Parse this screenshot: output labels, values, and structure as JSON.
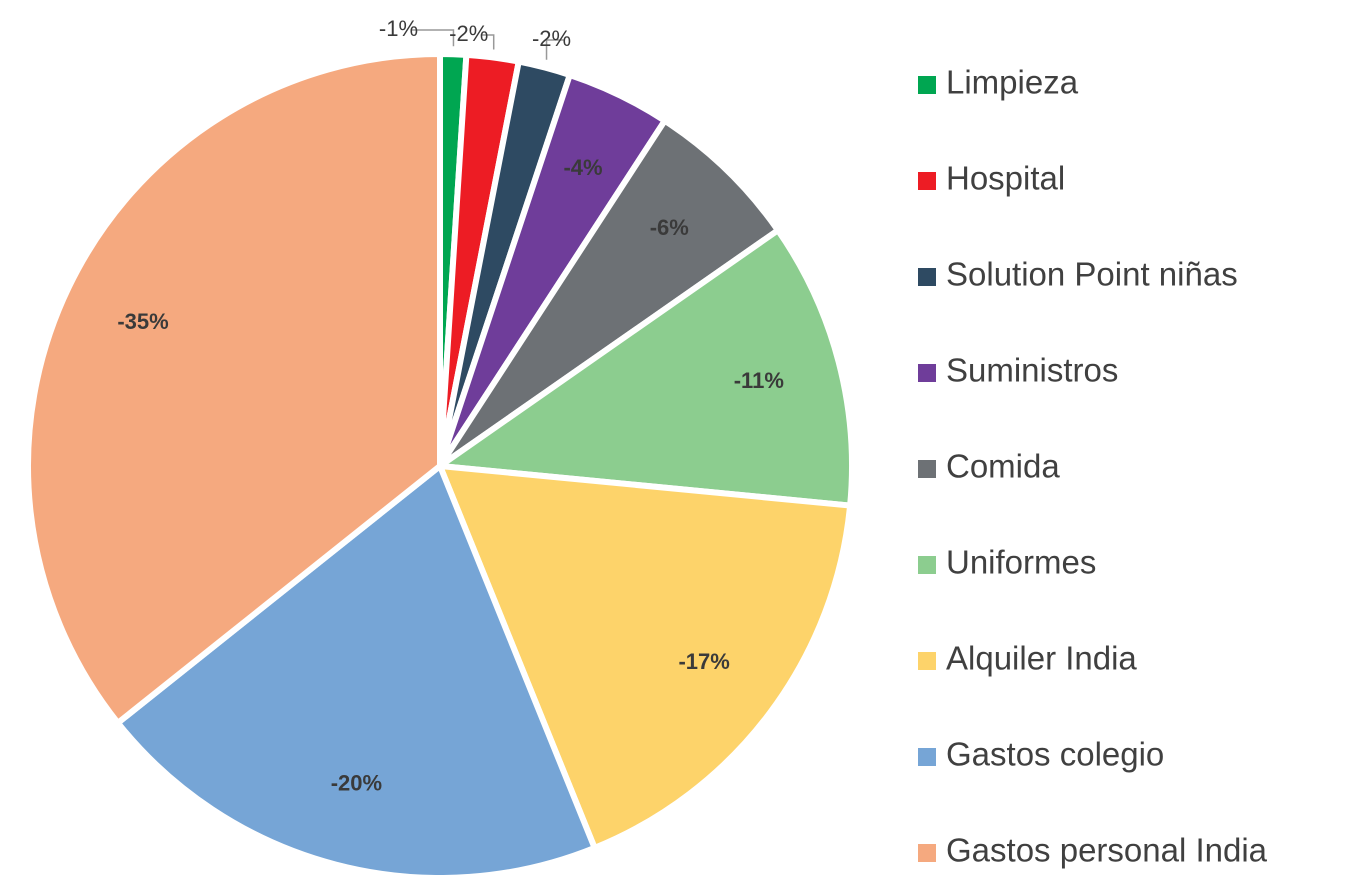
{
  "chart_data": {
    "type": "pie",
    "categories": [
      "Limpieza",
      "Hospital",
      "Solution Point niñas",
      "Suministros",
      "Comida",
      "Uniformes",
      "Alquiler India",
      "Gastos colegio",
      "Gastos personal India"
    ],
    "values": [
      -1,
      -2,
      -2,
      -4,
      -6,
      -11,
      -17,
      -20,
      -35
    ],
    "value_labels": [
      "-1%",
      "-2%",
      "-2%",
      "-4%",
      "-6%",
      "-11%",
      "-17%",
      "-20%",
      "-35%"
    ],
    "colors": [
      "#00a651",
      "#ed1c24",
      "#2e4a62",
      "#6f3d9a",
      "#6d7175",
      "#8ccd8f",
      "#fdd36a",
      "#76a5d6",
      "#f5a97f"
    ],
    "legend": "right"
  }
}
